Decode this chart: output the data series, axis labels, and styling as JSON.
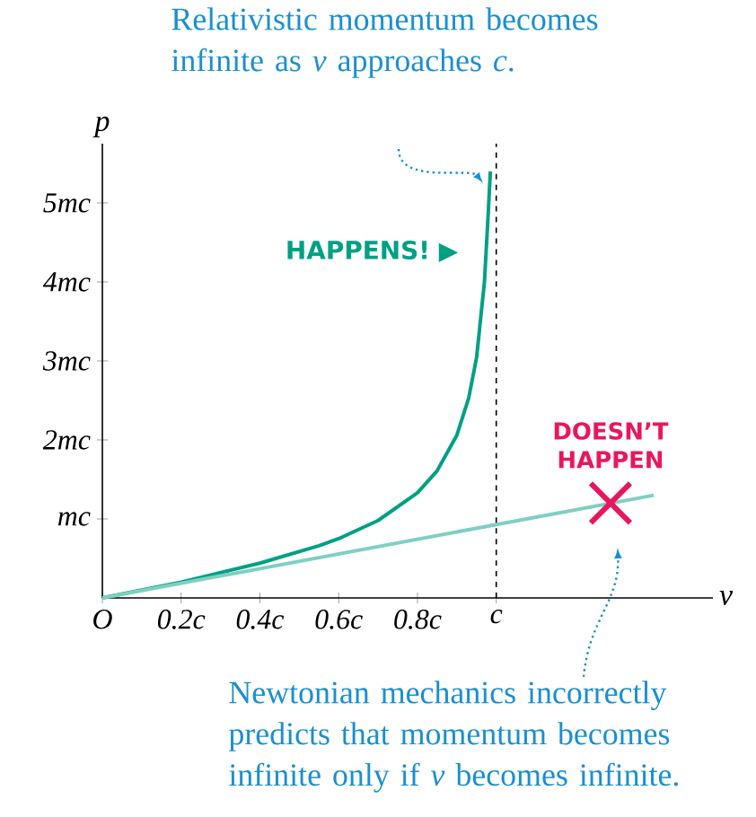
{
  "chart_data": {
    "type": "line",
    "xlabel": "v",
    "ylabel": "p",
    "xlim": [
      0,
      1.55
    ],
    "ylim": [
      0,
      5.75
    ],
    "xticks": [
      {
        "value": 0,
        "label": "O"
      },
      {
        "value": 0.2,
        "label": "0.2c"
      },
      {
        "value": 0.4,
        "label": "0.4c"
      },
      {
        "value": 0.6,
        "label": "0.6c"
      },
      {
        "value": 0.8,
        "label": "0.8c"
      },
      {
        "value": 1,
        "label": "c"
      }
    ],
    "yticks": [
      {
        "value": 1,
        "label": "mc"
      },
      {
        "value": 2,
        "label": "2mc"
      },
      {
        "value": 3,
        "label": "3mc"
      },
      {
        "value": 4,
        "label": "4mc"
      },
      {
        "value": 5,
        "label": "5mc"
      }
    ],
    "series": [
      {
        "color": "#00a085",
        "x": [
          0,
          0.2,
          0.4,
          0.55,
          0.6,
          0.7,
          0.8,
          0.85,
          0.9,
          0.93,
          0.95,
          0.97,
          0.98,
          0.985
        ],
        "values": [
          0,
          0.2,
          0.44,
          0.66,
          0.75,
          0.98,
          1.33,
          1.61,
          2.06,
          2.53,
          3.04,
          4.0,
          4.9,
          5.4
        ]
      },
      {
        "color": "#7fcfc3",
        "x": [
          0,
          1.4
        ],
        "values": [
          0,
          1.3
        ]
      }
    ],
    "ref_lines": [
      {
        "axis": "x",
        "value": 1,
        "color": "#000000",
        "line_style": "dashed"
      }
    ],
    "annotations": [
      "Relativistic momentum becomes infinite as *v* approaches *c*.",
      "HAPPENS! ▶",
      {
        "text": "DOESN’T HAPPEN",
        "x": 1.29,
        "y": 1.2
      },
      "Newtonian mechanics incorrectly predicts that momentum becomes infinite only if *v* becomes infinite."
    ],
    "marker": "none",
    "line_style": "solid",
    "grid": false
  }
}
